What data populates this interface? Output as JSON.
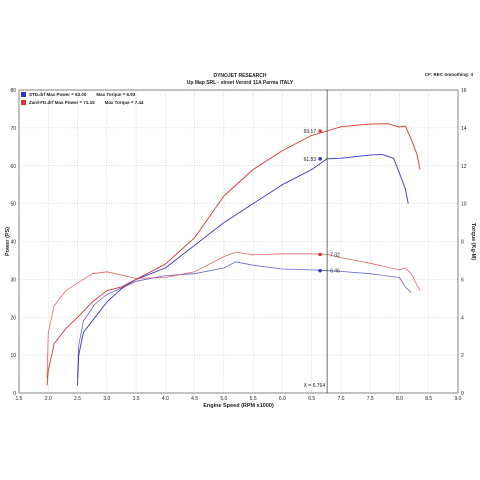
{
  "header": {
    "line1": "DYNOJET RESEARCH",
    "line2": "Up Map SRL - street Verord 11A Parma ITALY",
    "correction": "CF: REC  Smoothing: 4"
  },
  "chart_data": {
    "type": "line",
    "xlabel": "Engine Speed (RPM x1000)",
    "ylabel": "Power (PS)",
    "y2label": "Torque (Kg-M)",
    "xlim": [
      1.5,
      9.0
    ],
    "ylim": [
      0,
      80
    ],
    "y2lim": [
      0,
      16
    ],
    "xticks": [
      "1.5",
      "2.0",
      "2.5",
      "3.0",
      "3.5",
      "4.0",
      "4.5",
      "5.0",
      "5.5",
      "6.0",
      "6.5",
      "7.0",
      "7.5",
      "8.0",
      "8.5",
      "9.0"
    ],
    "yticks": [
      "0",
      "10",
      "20",
      "30",
      "40",
      "50",
      "60",
      "70",
      "80"
    ],
    "y2ticks": [
      "0",
      "2",
      "4",
      "6",
      "8",
      "10",
      "12",
      "14",
      "16"
    ],
    "grid": true,
    "legend_position": "top-left",
    "legend": [
      {
        "label": "STD.drf Max Power = 63.00",
        "torque_label": "Max Torque = 6.93",
        "color": "#3333cc"
      },
      {
        "label": "Zard-FD.drf Max Power = 71.15",
        "torque_label": "Max Torque = 7.44",
        "color": "#dd3333"
      }
    ],
    "cursor": {
      "x": 6.764,
      "label": "X = 6.764"
    },
    "markers": [
      {
        "series": "Zard-FD.drf",
        "kind": "power",
        "label": "69.17",
        "x": 6.764,
        "y": 69.17
      },
      {
        "series": "STD.drf",
        "kind": "power",
        "label": "61.83",
        "x": 6.764,
        "y": 61.83
      },
      {
        "series": "Zard-FD.drf",
        "kind": "torque",
        "label": "7.32",
        "x": 6.764,
        "y": 7.32
      },
      {
        "series": "STD.drf",
        "kind": "torque",
        "label": "6.46",
        "x": 6.764,
        "y": 6.46
      }
    ],
    "series": [
      {
        "name": "STD.drf",
        "kind": "power",
        "axis": "left",
        "color": "#3333cc",
        "points": [
          [
            2.5,
            2
          ],
          [
            2.52,
            10
          ],
          [
            2.6,
            16
          ],
          [
            2.8,
            20
          ],
          [
            3.0,
            24
          ],
          [
            3.25,
            27.5
          ],
          [
            3.5,
            30
          ],
          [
            4.0,
            33
          ],
          [
            4.5,
            39
          ],
          [
            5.0,
            45
          ],
          [
            5.5,
            50
          ],
          [
            6.0,
            55
          ],
          [
            6.5,
            59
          ],
          [
            6.764,
            61.83
          ],
          [
            7.0,
            62
          ],
          [
            7.5,
            62.8
          ],
          [
            7.7,
            63
          ],
          [
            7.9,
            62
          ],
          [
            8.0,
            58
          ],
          [
            8.1,
            54
          ],
          [
            8.15,
            50
          ]
        ]
      },
      {
        "name": "Zard-FD.drf",
        "kind": "power",
        "axis": "left",
        "color": "#dd3333",
        "points": [
          [
            1.98,
            2
          ],
          [
            2.0,
            6
          ],
          [
            2.1,
            13
          ],
          [
            2.3,
            17
          ],
          [
            2.5,
            20
          ],
          [
            2.75,
            24
          ],
          [
            3.0,
            27
          ],
          [
            3.25,
            28
          ],
          [
            3.5,
            30
          ],
          [
            4.0,
            34
          ],
          [
            4.5,
            41
          ],
          [
            5.0,
            52
          ],
          [
            5.5,
            59
          ],
          [
            6.0,
            64
          ],
          [
            6.5,
            68
          ],
          [
            6.764,
            69.17
          ],
          [
            7.0,
            70.3
          ],
          [
            7.5,
            71
          ],
          [
            7.8,
            71.1
          ],
          [
            8.0,
            70.2
          ],
          [
            8.1,
            70.5
          ],
          [
            8.2,
            67
          ],
          [
            8.3,
            63
          ],
          [
            8.35,
            59
          ]
        ]
      },
      {
        "name": "STD.drf",
        "kind": "torque",
        "axis": "right",
        "color": "#3333cc",
        "points": [
          [
            2.5,
            0.8
          ],
          [
            2.52,
            2.5
          ],
          [
            2.6,
            3.8
          ],
          [
            2.8,
            4.7
          ],
          [
            3.0,
            5.2
          ],
          [
            3.5,
            5.9
          ],
          [
            4.0,
            6.2
          ],
          [
            4.5,
            6.3
          ],
          [
            5.0,
            6.6
          ],
          [
            5.2,
            6.93
          ],
          [
            5.5,
            6.75
          ],
          [
            6.0,
            6.55
          ],
          [
            6.5,
            6.5
          ],
          [
            6.764,
            6.46
          ],
          [
            7.0,
            6.42
          ],
          [
            7.5,
            6.3
          ],
          [
            8.0,
            6.1
          ],
          [
            8.1,
            5.6
          ],
          [
            8.2,
            5.3
          ]
        ]
      },
      {
        "name": "Zard-FD.drf",
        "kind": "torque",
        "axis": "right",
        "color": "#dd3333",
        "points": [
          [
            1.98,
            0.8
          ],
          [
            2.0,
            3.2
          ],
          [
            2.1,
            4.6
          ],
          [
            2.3,
            5.4
          ],
          [
            2.5,
            5.8
          ],
          [
            2.75,
            6.3
          ],
          [
            3.0,
            6.4
          ],
          [
            3.5,
            6.05
          ],
          [
            4.0,
            6.1
          ],
          [
            4.5,
            6.4
          ],
          [
            5.0,
            7.2
          ],
          [
            5.2,
            7.44
          ],
          [
            5.5,
            7.3
          ],
          [
            6.0,
            7.35
          ],
          [
            6.5,
            7.35
          ],
          [
            6.764,
            7.32
          ],
          [
            7.0,
            7.15
          ],
          [
            7.5,
            6.85
          ],
          [
            8.0,
            6.5
          ],
          [
            8.1,
            6.6
          ],
          [
            8.2,
            6.3
          ],
          [
            8.3,
            5.7
          ],
          [
            8.35,
            5.4
          ]
        ]
      }
    ]
  }
}
